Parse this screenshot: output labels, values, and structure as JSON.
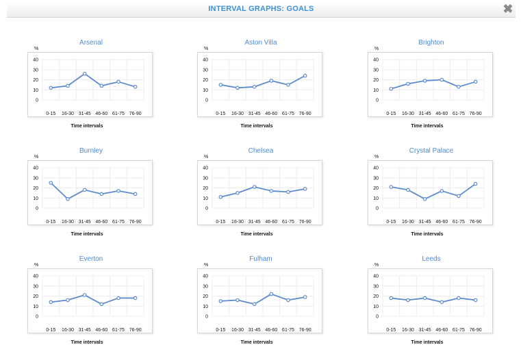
{
  "modal": {
    "title": "INTERVAL GRAPHS: GOALS",
    "close_icon": "close-icon",
    "accent_color": "#3d8fd8"
  },
  "chart_data": [
    {
      "type": "line",
      "title": "Arsenal",
      "ylabel": "%",
      "xlabel": "Time intervals",
      "categories": [
        "0-15",
        "16-30",
        "31-45",
        "46-60",
        "61-75",
        "76-90"
      ],
      "yticks": [
        0,
        10,
        20,
        30,
        40
      ],
      "ylim": [
        0,
        40
      ],
      "grid": true,
      "color": "#5b8ad0",
      "values": [
        12,
        14,
        26,
        14,
        18,
        13
      ]
    },
    {
      "type": "line",
      "title": "Aston Villa",
      "ylabel": "%",
      "xlabel": "Time intervals",
      "categories": [
        "0-15",
        "16-30",
        "31-45",
        "46-60",
        "61-75",
        "76-90"
      ],
      "yticks": [
        0,
        10,
        20,
        30,
        40
      ],
      "ylim": [
        0,
        40
      ],
      "grid": true,
      "color": "#5b8ad0",
      "values": [
        15,
        12,
        13,
        19,
        15,
        24
      ]
    },
    {
      "type": "line",
      "title": "Brighton",
      "ylabel": "%",
      "xlabel": "Time intervals",
      "categories": [
        "0-15",
        "16-30",
        "31-45",
        "46-60",
        "61-75",
        "76-90"
      ],
      "yticks": [
        0,
        10,
        20,
        30,
        40
      ],
      "ylim": [
        0,
        40
      ],
      "grid": true,
      "color": "#5b8ad0",
      "values": [
        11,
        16,
        19,
        20,
        13,
        18
      ]
    },
    {
      "type": "line",
      "title": "Burnley",
      "ylabel": "%",
      "xlabel": "Time intervals",
      "categories": [
        "0-15",
        "16-30",
        "31-45",
        "46-60",
        "61-75",
        "76-90"
      ],
      "yticks": [
        0,
        10,
        20,
        30,
        40
      ],
      "ylim": [
        0,
        40
      ],
      "grid": true,
      "color": "#5b8ad0",
      "values": [
        25,
        9,
        18,
        14,
        17,
        14
      ]
    },
    {
      "type": "line",
      "title": "Chelsea",
      "ylabel": "%",
      "xlabel": "Time intervals",
      "categories": [
        "0-15",
        "16-30",
        "31-45",
        "46-60",
        "61-75",
        "76-90"
      ],
      "yticks": [
        0,
        10,
        20,
        30,
        40
      ],
      "ylim": [
        0,
        40
      ],
      "grid": true,
      "color": "#5b8ad0",
      "values": [
        11,
        15,
        21,
        17,
        16,
        19
      ]
    },
    {
      "type": "line",
      "title": "Crystal Palace",
      "ylabel": "%",
      "xlabel": "Time intervals",
      "categories": [
        "0-15",
        "16-30",
        "31-45",
        "46-60",
        "61-75",
        "76-90"
      ],
      "yticks": [
        0,
        10,
        20,
        30,
        40
      ],
      "ylim": [
        0,
        40
      ],
      "grid": true,
      "color": "#5b8ad0",
      "values": [
        21,
        18,
        9,
        17,
        12,
        24
      ]
    },
    {
      "type": "line",
      "title": "Everton",
      "ylabel": "%",
      "xlabel": "Time intervals",
      "categories": [
        "0-15",
        "16-30",
        "31-45",
        "46-60",
        "61-75",
        "76-90"
      ],
      "yticks": [
        0,
        10,
        20,
        30,
        40
      ],
      "ylim": [
        0,
        40
      ],
      "grid": true,
      "color": "#5b8ad0",
      "values": [
        14,
        16,
        21,
        12,
        18,
        18
      ]
    },
    {
      "type": "line",
      "title": "Fulham",
      "ylabel": "%",
      "xlabel": "Time intervals",
      "categories": [
        "0-15",
        "16-30",
        "31-45",
        "46-60",
        "61-75",
        "76-90"
      ],
      "yticks": [
        0,
        10,
        20,
        30,
        40
      ],
      "ylim": [
        0,
        40
      ],
      "grid": true,
      "color": "#5b8ad0",
      "values": [
        15,
        16,
        12,
        22,
        16,
        19
      ]
    },
    {
      "type": "line",
      "title": "Leeds",
      "ylabel": "%",
      "xlabel": "Time intervals",
      "categories": [
        "0-15",
        "16-30",
        "31-45",
        "46-60",
        "61-75",
        "76-90"
      ],
      "yticks": [
        0,
        10,
        20,
        30,
        40
      ],
      "ylim": [
        0,
        40
      ],
      "grid": true,
      "color": "#5b8ad0",
      "values": [
        18,
        16,
        18,
        14,
        18,
        16
      ]
    }
  ]
}
